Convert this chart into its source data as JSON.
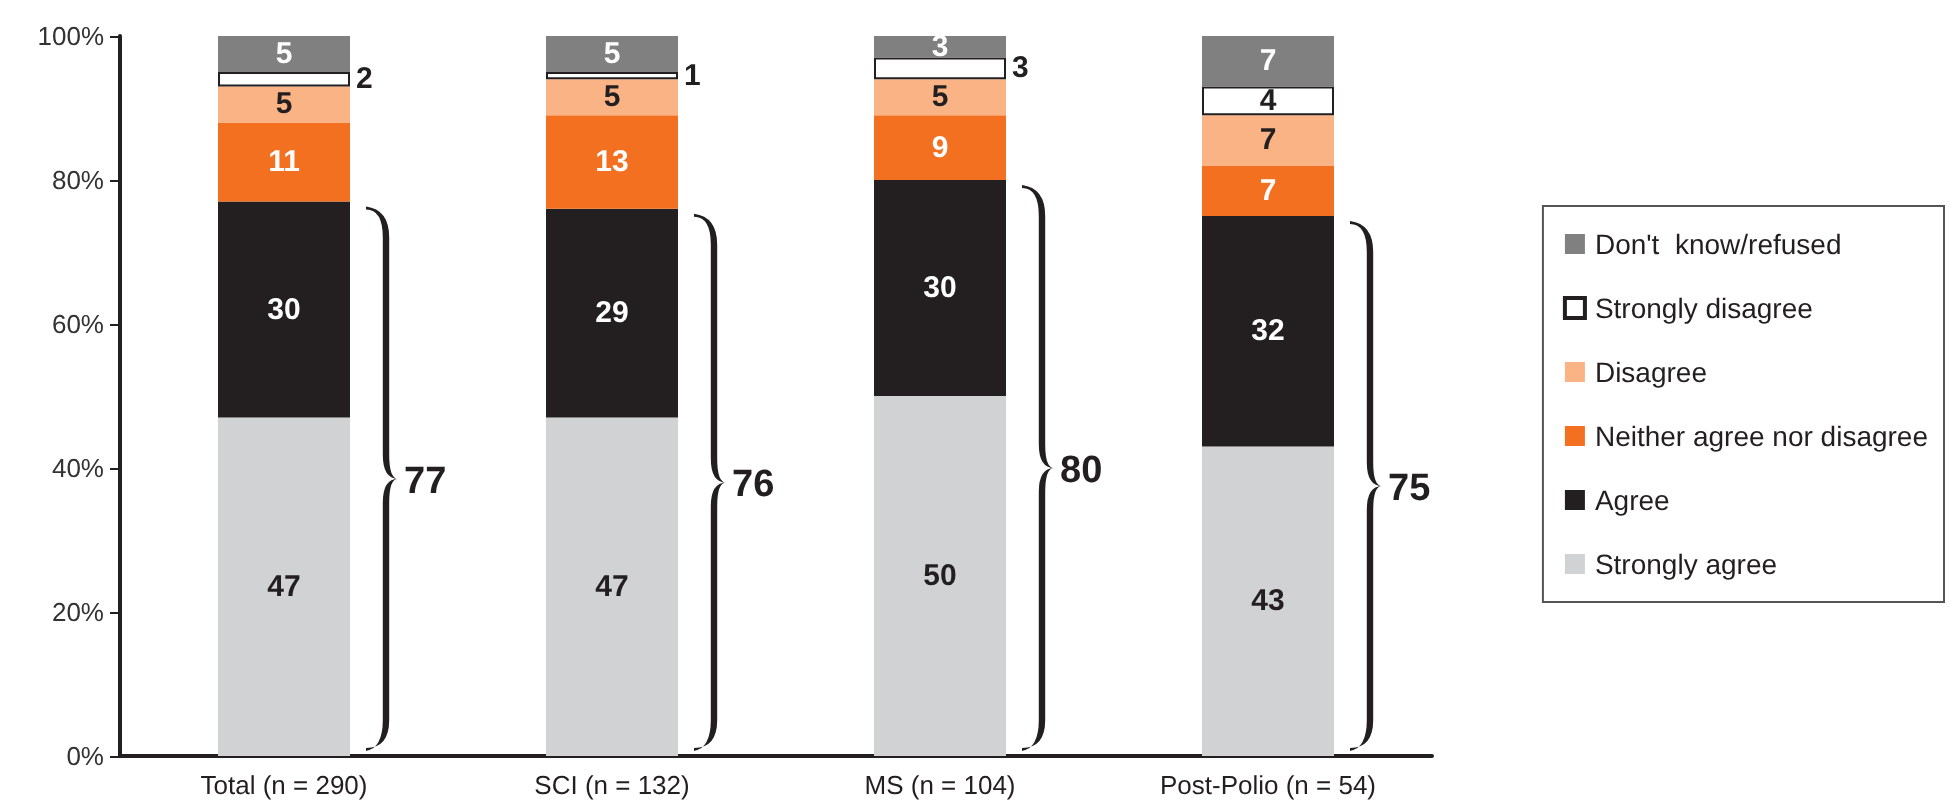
{
  "chart_data": {
    "type": "bar",
    "stacked": true,
    "categories": [
      "Total (n = 290)",
      "SCI (n = 132)",
      "MS (n = 104)",
      "Post-Polio (n = 54)"
    ],
    "series": [
      {
        "name": "Strongly agree",
        "color": "#d1d2d4",
        "values": [
          47,
          47,
          50,
          43
        ]
      },
      {
        "name": "Agree",
        "color": "#231f20",
        "values": [
          30,
          29,
          30,
          32
        ]
      },
      {
        "name": "Neither agree nor disagree",
        "color": "#f37021",
        "values": [
          11,
          13,
          9,
          7
        ]
      },
      {
        "name": "Disagree",
        "color": "#f9b385",
        "values": [
          5,
          5,
          5,
          7
        ]
      },
      {
        "name": "Strongly disagree",
        "color": "#ffffff",
        "values": [
          2,
          1,
          3,
          4
        ]
      },
      {
        "name": "Don't  know/refused",
        "color": "#808080",
        "values": [
          5,
          5,
          3,
          7
        ]
      }
    ],
    "ylim": [
      0,
      100
    ],
    "yticks": [
      {
        "value": 0,
        "label": "0%"
      },
      {
        "value": 20,
        "label": "20%"
      },
      {
        "value": 40,
        "label": "40%"
      },
      {
        "value": 60,
        "label": "60%"
      },
      {
        "value": 80,
        "label": "80%"
      },
      {
        "value": 100,
        "label": "100%"
      }
    ],
    "data_labels": true,
    "grid": false,
    "legend": "right",
    "annotations": [
      "77",
      "76",
      "80",
      "75"
    ]
  }
}
